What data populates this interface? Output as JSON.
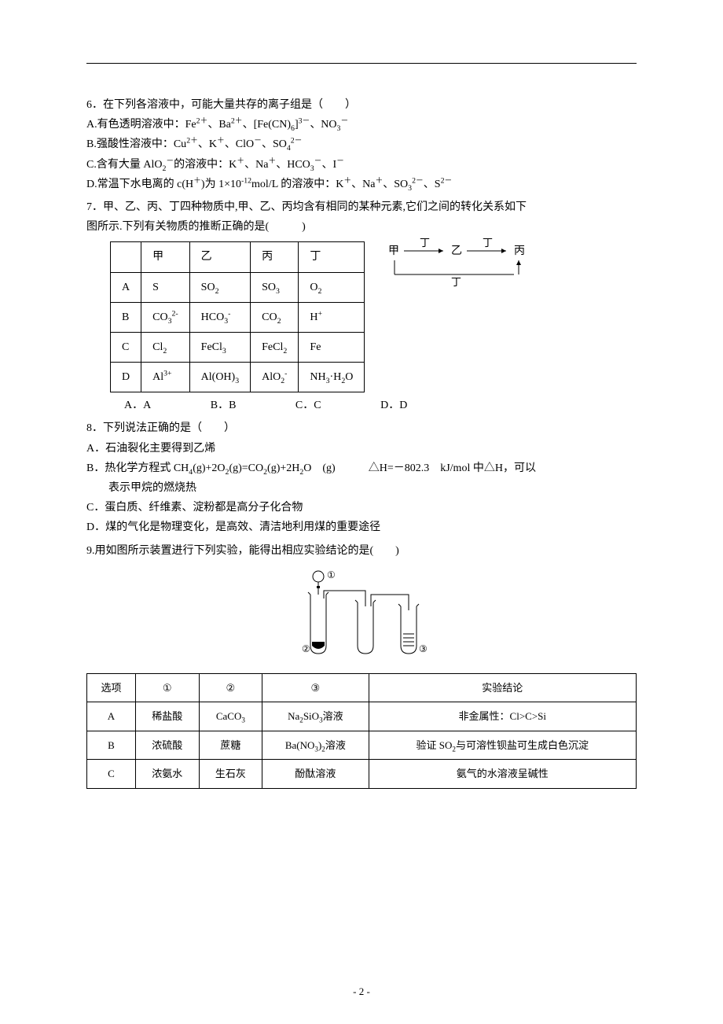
{
  "page_number": "- 2 -",
  "q6": {
    "stem": "6．在下列各溶液中，可能大量共存的离子组是（　　）",
    "A": "A.有色透明溶液中：Fe<sup>2＋</sup>、Ba<sup>2＋</sup>、[Fe(CN)<sub>6</sub>]<sup>3－</sup>、NO<sub>3</sub><sup>－</sup>",
    "B": "B.强酸性溶液中：Cu<sup>2＋</sup>、K<sup>＋</sup>、ClO<sup>－</sup>、SO<sub>4</sub><sup>2－</sup>",
    "C": "C.含有大量 AlO<sub>2</sub><sup>－</sup>的溶液中：K<sup>＋</sup>、Na<sup>＋</sup>、HCO<sub>3</sub><sup>－</sup>、I<sup>－</sup>",
    "D": "D.常温下水电离的 c(H<sup>＋</sup>)为 1×10<sup>-12</sup>mol/L 的溶液中：K<sup>＋</sup>、Na<sup>＋</sup>、SO<sub>3</sub><sup>2－</sup>、S<sup>2－</sup>"
  },
  "q7": {
    "stem1": "7．甲、乙、丙、丁四种物质中,甲、乙、丙均含有相同的某种元素,它们之间的转化关系如下",
    "stem2": "图所示.下列有关物质的推断正确的是(　　　)",
    "headers": [
      "",
      "甲",
      "乙",
      "丙",
      "丁"
    ],
    "rows": [
      [
        "A",
        "S",
        "SO<sub>2</sub>",
        "SO<sub>3</sub>",
        "O<sub>2</sub>"
      ],
      [
        "B",
        "CO<sub>3</sub><sup>2-</sup>",
        "HCO<sub>3</sub><sup>-</sup>",
        "CO<sub>2</sub>",
        "H<sup>+</sup>"
      ],
      [
        "C",
        "Cl<sub>2</sub>",
        "FeCl<sub>3</sub>",
        "FeCl<sub>2</sub>",
        "Fe"
      ],
      [
        "D",
        "Al<sup>3+</sup>",
        "Al(OH)<sub>3</sub>",
        "AlO<sub>2</sub><sup>-</sup>",
        "NH<sub>3</sub>·H<sub>2</sub>O"
      ]
    ],
    "choices": [
      "A．A",
      "B．B",
      "C．C",
      "D．D"
    ],
    "diagram": {
      "jia": "甲",
      "yi": "乙",
      "bing": "丙",
      "ding": "丁"
    }
  },
  "q8": {
    "stem": "8．下列说法正确的是（　　）",
    "A": "A．石油裂化主要得到乙烯",
    "B1": "B．热化学方程式 CH<sub>4</sub>(g)+2O<sub>2</sub>(g)=CO<sub>2</sub>(g)+2H<sub>2</sub>O　(g)　　　△H=－802.3　kJ/mol 中△H，可以",
    "B2": "表示甲烷的燃烧热",
    "C": "C．蛋白质、纤维素、淀粉都是高分子化合物",
    "D": "D．煤的气化是物理变化，是高效、清洁地利用煤的重要途径"
  },
  "q9": {
    "stem": "9.用如图所示装置进行下列实验，能得出相应实验结论的是(　　)",
    "labels": {
      "c1": "①",
      "c2": "②",
      "c3": "③"
    },
    "headers": [
      "选项",
      "①",
      "②",
      "③",
      "实验结论"
    ],
    "rows": [
      [
        "A",
        "稀盐酸",
        "CaCO<sub>3</sub>",
        "Na<sub>2</sub>SiO<sub>3</sub>溶液",
        "非金属性：Cl>C>Si"
      ],
      [
        "B",
        "浓硫酸",
        "蔗糖",
        "Ba(NO<sub>3</sub>)<sub>2</sub>溶液",
        "验证 SO<sub>2</sub>与可溶性钡盐可生成白色沉淀"
      ],
      [
        "C",
        "浓氨水",
        "生石灰",
        "酚酞溶液",
        "氨气的水溶液呈碱性"
      ]
    ]
  }
}
